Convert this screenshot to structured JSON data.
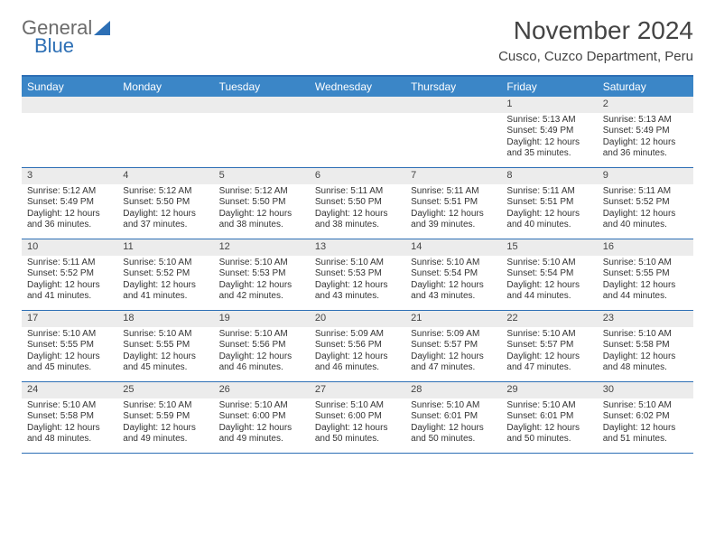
{
  "logo": {
    "text1": "General",
    "text2": "Blue"
  },
  "title": "November 2024",
  "location": "Cusco, Cuzco Department, Peru",
  "colors": {
    "header_bg": "#3b86c7",
    "border": "#2d6fb5",
    "daynum_bg": "#ececec"
  },
  "day_names": [
    "Sunday",
    "Monday",
    "Tuesday",
    "Wednesday",
    "Thursday",
    "Friday",
    "Saturday"
  ],
  "weeks": [
    [
      null,
      null,
      null,
      null,
      null,
      {
        "n": "1",
        "sr": "5:13 AM",
        "ss": "5:49 PM",
        "dl": "12 hours and 35 minutes."
      },
      {
        "n": "2",
        "sr": "5:13 AM",
        "ss": "5:49 PM",
        "dl": "12 hours and 36 minutes."
      }
    ],
    [
      {
        "n": "3",
        "sr": "5:12 AM",
        "ss": "5:49 PM",
        "dl": "12 hours and 36 minutes."
      },
      {
        "n": "4",
        "sr": "5:12 AM",
        "ss": "5:50 PM",
        "dl": "12 hours and 37 minutes."
      },
      {
        "n": "5",
        "sr": "5:12 AM",
        "ss": "5:50 PM",
        "dl": "12 hours and 38 minutes."
      },
      {
        "n": "6",
        "sr": "5:11 AM",
        "ss": "5:50 PM",
        "dl": "12 hours and 38 minutes."
      },
      {
        "n": "7",
        "sr": "5:11 AM",
        "ss": "5:51 PM",
        "dl": "12 hours and 39 minutes."
      },
      {
        "n": "8",
        "sr": "5:11 AM",
        "ss": "5:51 PM",
        "dl": "12 hours and 40 minutes."
      },
      {
        "n": "9",
        "sr": "5:11 AM",
        "ss": "5:52 PM",
        "dl": "12 hours and 40 minutes."
      }
    ],
    [
      {
        "n": "10",
        "sr": "5:11 AM",
        "ss": "5:52 PM",
        "dl": "12 hours and 41 minutes."
      },
      {
        "n": "11",
        "sr": "5:10 AM",
        "ss": "5:52 PM",
        "dl": "12 hours and 41 minutes."
      },
      {
        "n": "12",
        "sr": "5:10 AM",
        "ss": "5:53 PM",
        "dl": "12 hours and 42 minutes."
      },
      {
        "n": "13",
        "sr": "5:10 AM",
        "ss": "5:53 PM",
        "dl": "12 hours and 43 minutes."
      },
      {
        "n": "14",
        "sr": "5:10 AM",
        "ss": "5:54 PM",
        "dl": "12 hours and 43 minutes."
      },
      {
        "n": "15",
        "sr": "5:10 AM",
        "ss": "5:54 PM",
        "dl": "12 hours and 44 minutes."
      },
      {
        "n": "16",
        "sr": "5:10 AM",
        "ss": "5:55 PM",
        "dl": "12 hours and 44 minutes."
      }
    ],
    [
      {
        "n": "17",
        "sr": "5:10 AM",
        "ss": "5:55 PM",
        "dl": "12 hours and 45 minutes."
      },
      {
        "n": "18",
        "sr": "5:10 AM",
        "ss": "5:55 PM",
        "dl": "12 hours and 45 minutes."
      },
      {
        "n": "19",
        "sr": "5:10 AM",
        "ss": "5:56 PM",
        "dl": "12 hours and 46 minutes."
      },
      {
        "n": "20",
        "sr": "5:09 AM",
        "ss": "5:56 PM",
        "dl": "12 hours and 46 minutes."
      },
      {
        "n": "21",
        "sr": "5:09 AM",
        "ss": "5:57 PM",
        "dl": "12 hours and 47 minutes."
      },
      {
        "n": "22",
        "sr": "5:10 AM",
        "ss": "5:57 PM",
        "dl": "12 hours and 47 minutes."
      },
      {
        "n": "23",
        "sr": "5:10 AM",
        "ss": "5:58 PM",
        "dl": "12 hours and 48 minutes."
      }
    ],
    [
      {
        "n": "24",
        "sr": "5:10 AM",
        "ss": "5:58 PM",
        "dl": "12 hours and 48 minutes."
      },
      {
        "n": "25",
        "sr": "5:10 AM",
        "ss": "5:59 PM",
        "dl": "12 hours and 49 minutes."
      },
      {
        "n": "26",
        "sr": "5:10 AM",
        "ss": "6:00 PM",
        "dl": "12 hours and 49 minutes."
      },
      {
        "n": "27",
        "sr": "5:10 AM",
        "ss": "6:00 PM",
        "dl": "12 hours and 50 minutes."
      },
      {
        "n": "28",
        "sr": "5:10 AM",
        "ss": "6:01 PM",
        "dl": "12 hours and 50 minutes."
      },
      {
        "n": "29",
        "sr": "5:10 AM",
        "ss": "6:01 PM",
        "dl": "12 hours and 50 minutes."
      },
      {
        "n": "30",
        "sr": "5:10 AM",
        "ss": "6:02 PM",
        "dl": "12 hours and 51 minutes."
      }
    ]
  ],
  "labels": {
    "sunrise": "Sunrise:",
    "sunset": "Sunset:",
    "daylight": "Daylight:"
  }
}
